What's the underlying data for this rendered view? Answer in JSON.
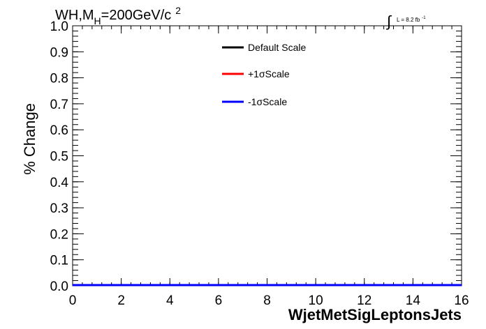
{
  "chart_data": {
    "type": "line",
    "title_main": "WH,M",
    "title_sub": "H",
    "title_rest": "=200GeV/c",
    "title_sup": "2",
    "lumi_main": "L = 8.2 fb",
    "lumi_sup": "-1",
    "xlabel": "WjetMetSigLeptonsJets",
    "ylabel": "% Change",
    "xlim": [
      0,
      16
    ],
    "ylim": [
      0,
      1.0
    ],
    "x_ticks": [
      0,
      2,
      4,
      6,
      8,
      10,
      12,
      14,
      16
    ],
    "y_ticks": [
      0.0,
      0.1,
      0.2,
      0.3,
      0.4,
      0.5,
      0.6,
      0.7,
      0.8,
      0.9,
      1.0
    ],
    "x_tick_labels": [
      "0",
      "2",
      "4",
      "6",
      "8",
      "10",
      "12",
      "14",
      "16"
    ],
    "y_tick_labels": [
      "0.0",
      "0.1",
      "0.2",
      "0.3",
      "0.4",
      "0.5",
      "0.6",
      "0.7",
      "0.8",
      "0.9",
      "1.0"
    ],
    "legend_position": "top-center",
    "series": [
      {
        "name": "Default Scale",
        "color": "#000000",
        "x": [
          0,
          16
        ],
        "y": [
          0,
          0
        ]
      },
      {
        "name": "+1σScale",
        "color": "#ff0000",
        "x": [
          0,
          16
        ],
        "y": [
          0,
          0
        ]
      },
      {
        "name": "-1σScale",
        "color": "#0000ff",
        "x": [
          0,
          16
        ],
        "y": [
          0,
          0
        ]
      }
    ]
  }
}
